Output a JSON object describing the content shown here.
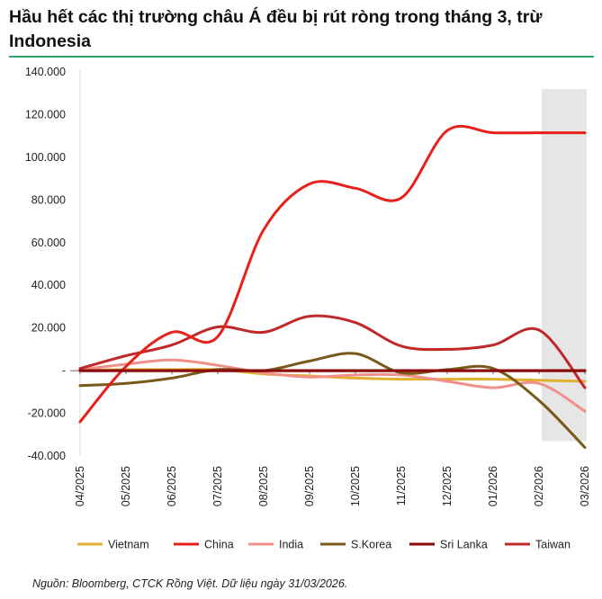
{
  "title": "Hầu hết các thị trường châu Á đều bị rút ròng trong tháng 3, trừ Indonesia",
  "source": "Nguồn: Bloomberg, CTCK Rồng Việt. Dữ liệu ngày 31/03/2026.",
  "chart_data": {
    "type": "line",
    "categories": [
      "04/2025",
      "05/2025",
      "06/2025",
      "07/2025",
      "08/2025",
      "09/2025",
      "10/2025",
      "11/2025",
      "12/2025",
      "01/2026",
      "02/2026",
      "03/2026"
    ],
    "y_tick_labels": [
      "140.000",
      "120.000",
      "100.000",
      "80.000",
      "60.000",
      "40.000",
      "20.000",
      "-",
      "-20.000",
      "-40.000"
    ],
    "ylim": [
      -40000,
      140000
    ],
    "y_tick_values": [
      140000,
      120000,
      100000,
      80000,
      60000,
      40000,
      20000,
      0,
      -20000,
      -40000
    ],
    "highlight_period": "03/2026",
    "legend_position": "bottom",
    "series": [
      {
        "name": "Vietnam",
        "color": "#e0b030",
        "values": [
          0,
          500,
          500,
          500,
          -1500,
          -2500,
          -3500,
          -4000,
          -4000,
          -4000,
          -4500,
          -5000
        ]
      },
      {
        "name": "China",
        "color": "#e8201a",
        "values": [
          -24000,
          2000,
          18000,
          16000,
          66000,
          87500,
          85500,
          81000,
          112500,
          111500,
          111500,
          111500
        ]
      },
      {
        "name": "India",
        "color": "#f0908a",
        "values": [
          500,
          3000,
          5000,
          2500,
          -1000,
          -3000,
          -2000,
          -2000,
          -5000,
          -8000,
          -6000,
          -19000
        ]
      },
      {
        "name": "S.Korea",
        "color": "#7a5a1a",
        "values": [
          -7000,
          -6000,
          -3500,
          500,
          0,
          4500,
          8000,
          -1000,
          500,
          1000,
          -14000,
          -36000
        ]
      },
      {
        "name": "Sri Lanka",
        "color": "#8b0a0a",
        "values": [
          0,
          0,
          0,
          0,
          0,
          0,
          0,
          0,
          0,
          0,
          0,
          0
        ]
      },
      {
        "name": "Taiwan",
        "color": "#c0282a",
        "values": [
          1000,
          7000,
          12000,
          20500,
          18000,
          25500,
          22500,
          11500,
          10000,
          12000,
          19000,
          -8000
        ]
      }
    ]
  }
}
